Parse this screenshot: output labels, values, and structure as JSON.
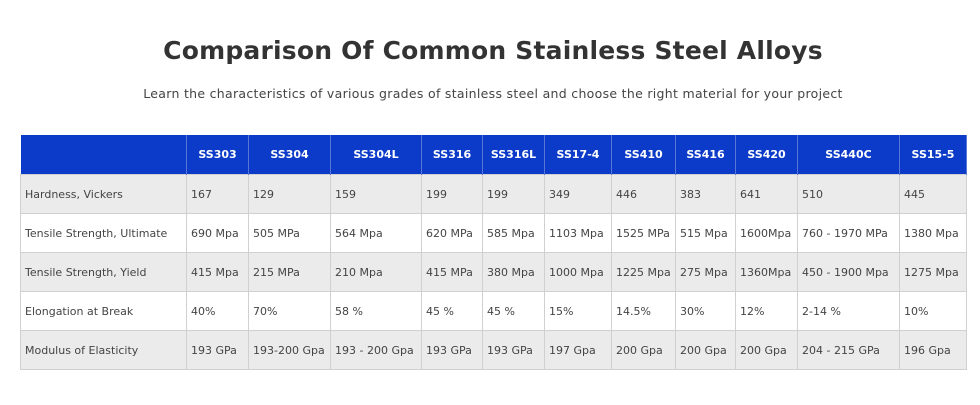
{
  "title": "Comparison Of Common Stainless Steel Alloys",
  "subtitle": "Learn the characteristics of various grades of stainless steel and choose the right material for your project",
  "colors": {
    "header_bg": "#0d3bc9",
    "stripe": "#ebebeb"
  },
  "table": {
    "headers": [
      "",
      "SS303",
      "SS304",
      "SS304L",
      "SS316",
      "SS316L",
      "SS17-4",
      "SS410",
      "SS416",
      "SS420",
      "SS440C",
      "SS15-5"
    ],
    "rows": [
      [
        "Hardness, Vickers",
        "167",
        "129",
        "159",
        "199",
        "199",
        "349",
        "446",
        "383",
        "641",
        "510",
        "445"
      ],
      [
        "Tensile Strength, Ultimate",
        "690 Mpa",
        "505 MPa",
        "564 Mpa",
        "620 MPa",
        "585 Mpa",
        "1103 Mpa",
        "1525 MPa",
        "515 Mpa",
        "1600Mpa",
        "760 - 1970 MPa",
        "1380 Mpa"
      ],
      [
        "Tensile Strength, Yield",
        "415 Mpa",
        "215 MPa",
        "210 Mpa",
        "415 MPa",
        "380 Mpa",
        "1000 Mpa",
        "1225 Mpa",
        "275 Mpa",
        "1360Mpa",
        "450 - 1900 Mpa",
        "1275 Mpa"
      ],
      [
        "Elongation at Break",
        "40%",
        "70%",
        "58 %",
        "45 %",
        "45 %",
        "15%",
        "14.5%",
        "30%",
        "12%",
        "2-14 %",
        "10%"
      ],
      [
        "Modulus of Elasticity",
        "193 GPa",
        "193-200 Gpa",
        "193 - 200 Gpa",
        "193 GPa",
        "193 GPa",
        "197 Gpa",
        "200 Gpa",
        "200 Gpa",
        "200 Gpa",
        "204 - 215 GPa",
        "196 Gpa"
      ]
    ]
  }
}
